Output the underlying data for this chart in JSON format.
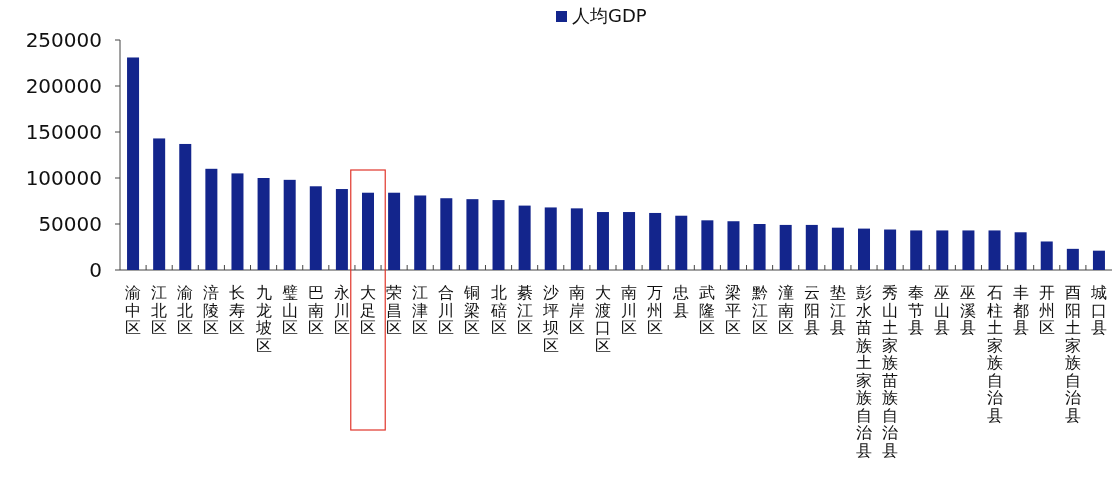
{
  "chart_data": {
    "type": "bar",
    "categories": [
      "渝中区",
      "江北区",
      "渝北区",
      "涪陵区",
      "长寿区",
      "九龙坡区",
      "璧山区",
      "巴南区",
      "永川区",
      "大足区",
      "荣昌区",
      "江津区",
      "合川区",
      "铜梁区",
      "北碚区",
      "綦江区",
      "沙坪坝区",
      "南岸区",
      "大渡口区",
      "南川区",
      "万州区",
      "忠县",
      "武隆区",
      "梁平区",
      "黔江区",
      "潼南区",
      "云阳县",
      "垫江县",
      "彭水苗族土家族自治县",
      "秀山土家族苗族自治县",
      "奉节县",
      "巫山县",
      "巫溪县",
      "石柱土家族自治县",
      "丰都县",
      "开州区",
      "酉阳土家族自治县",
      "城口县"
    ],
    "series": [
      {
        "name": "人均GDP",
        "color": "#13258c",
        "values": [
          231000,
          143000,
          137000,
          110000,
          105000,
          100000,
          98000,
          91000,
          88000,
          84000,
          84000,
          81000,
          78000,
          77000,
          76000,
          70000,
          68000,
          67000,
          63000,
          63000,
          62000,
          59000,
          54000,
          53000,
          50000,
          49000,
          49000,
          46000,
          45000,
          44000,
          43000,
          43000,
          43000,
          43000,
          41000,
          31000,
          23000,
          21000
        ]
      }
    ],
    "ylim": [
      0,
      250000
    ],
    "yticks": [
      0,
      50000,
      100000,
      150000,
      200000,
      250000
    ],
    "legend": "top",
    "grid": false
  }
}
